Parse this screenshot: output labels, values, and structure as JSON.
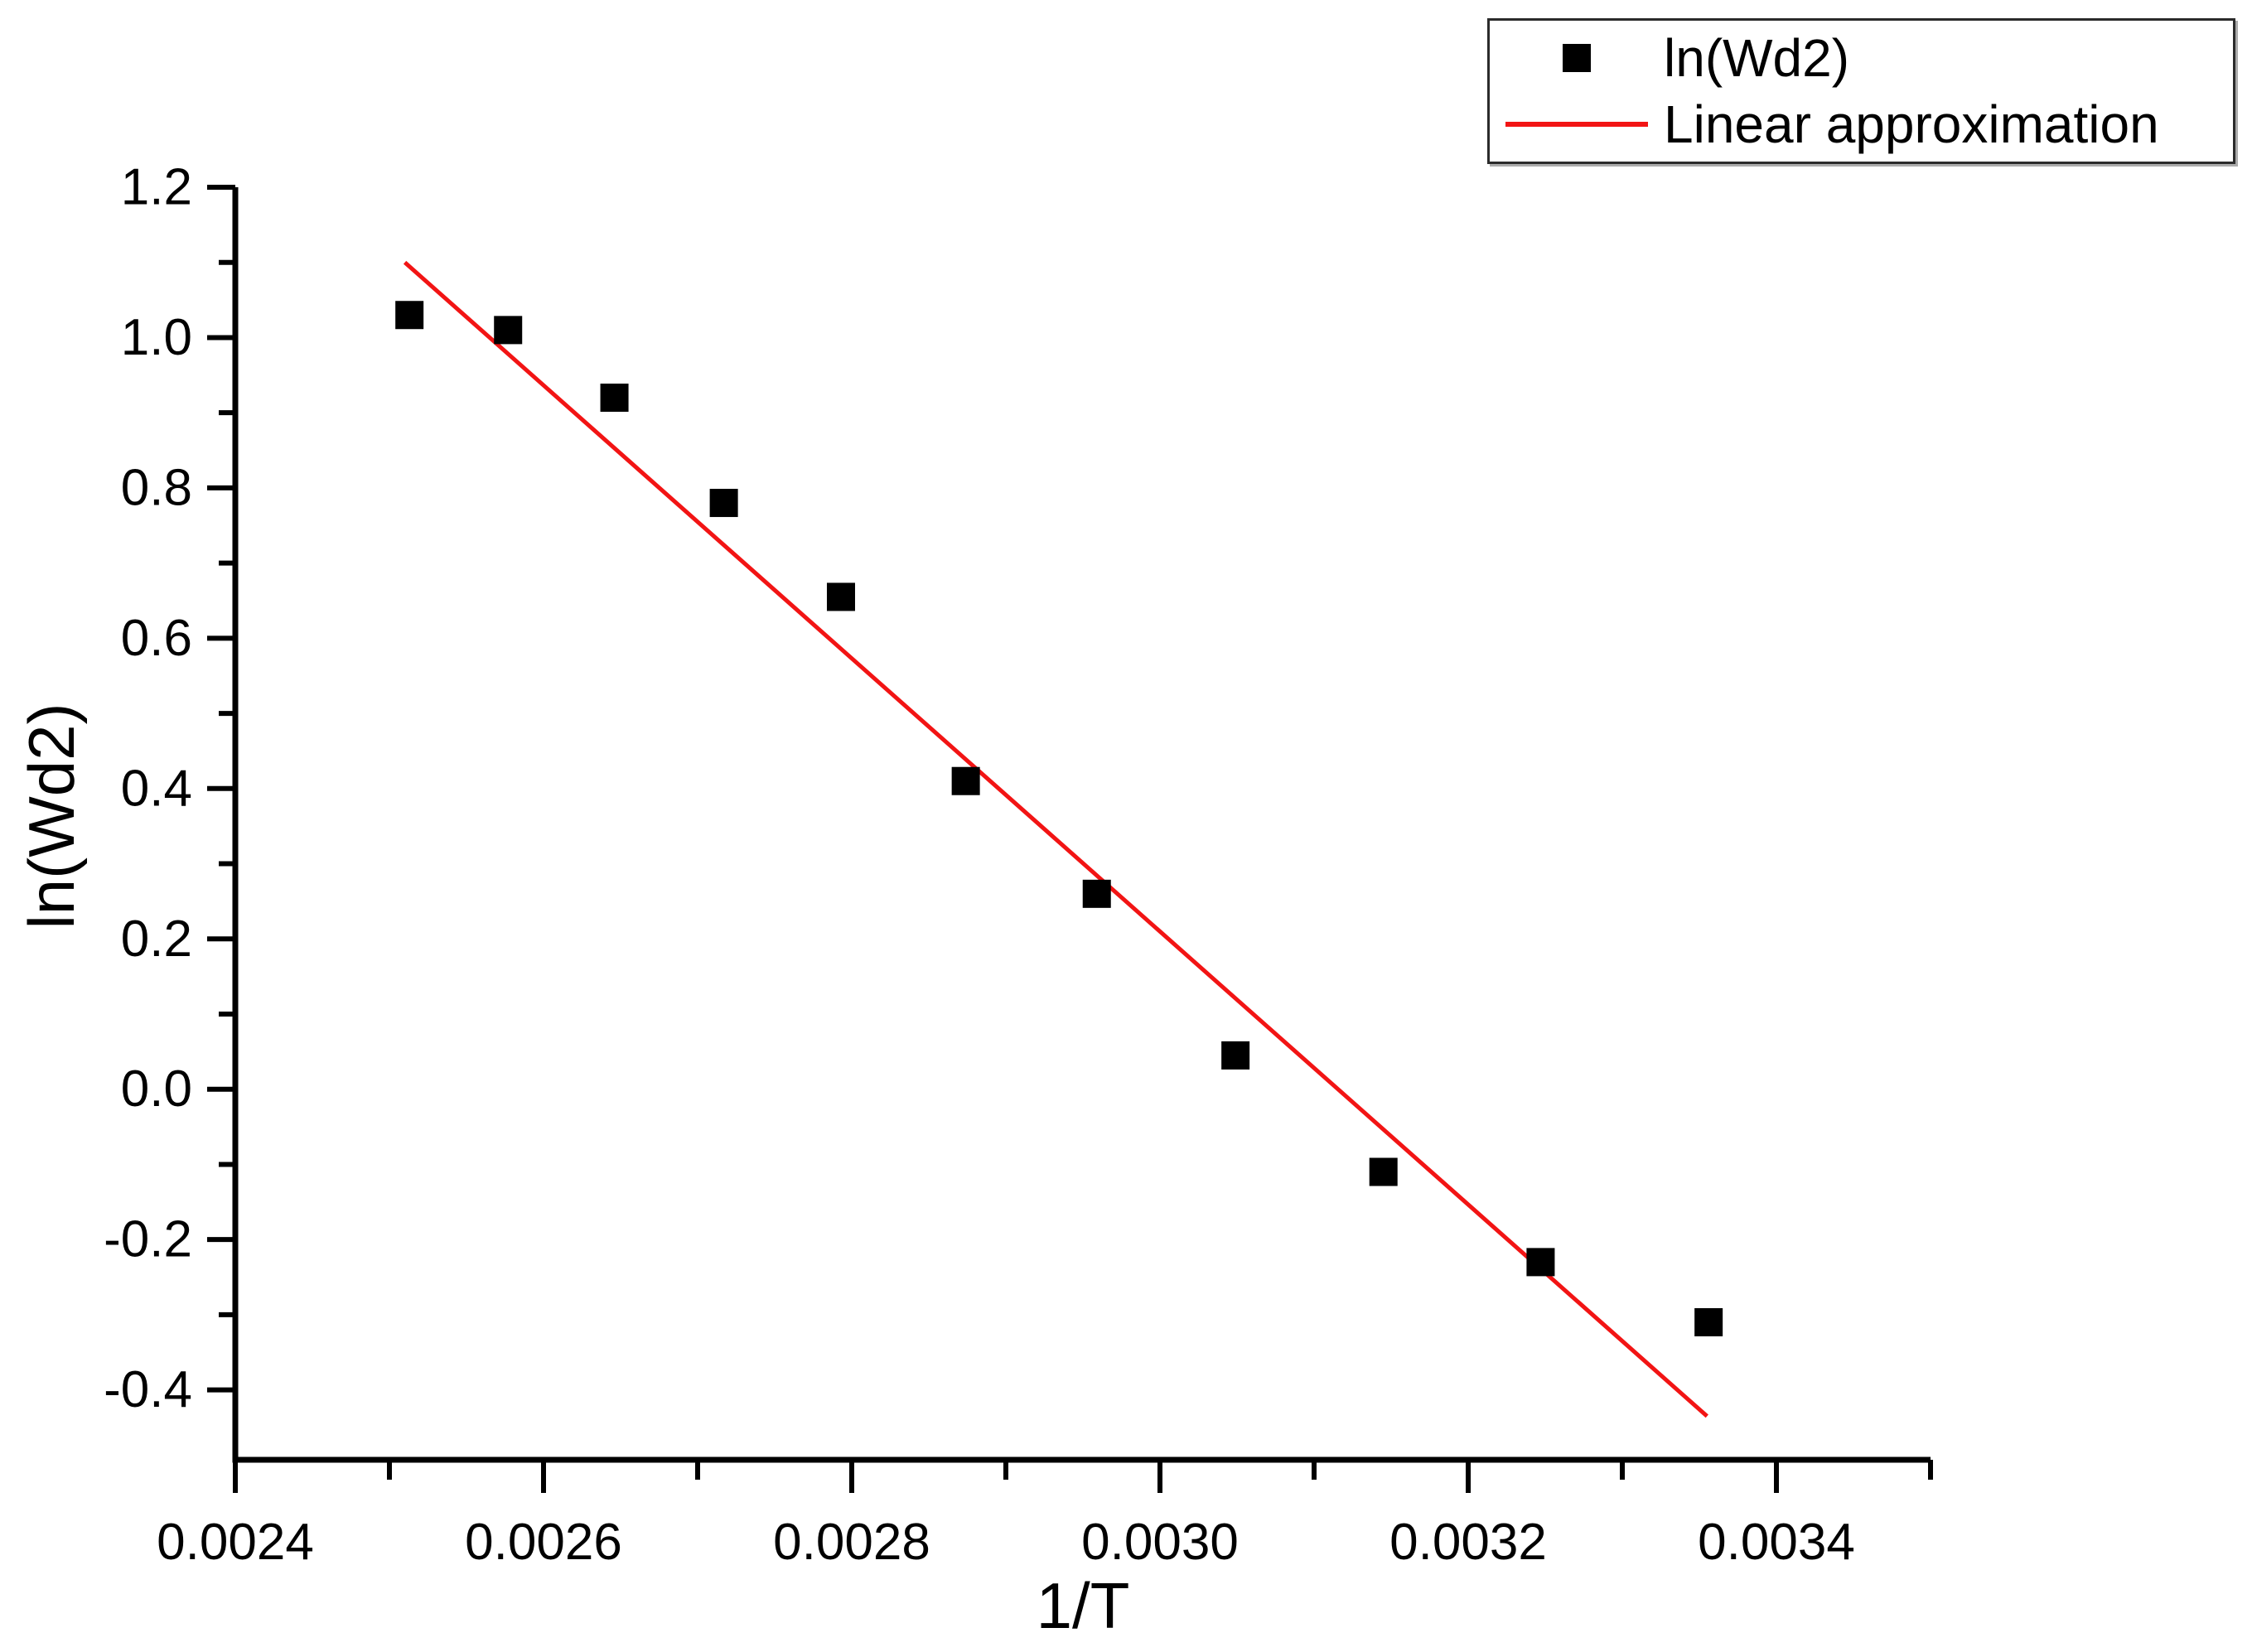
{
  "page": {
    "background": "#ffffff"
  },
  "legend": {
    "position": "top-right",
    "entries": [
      {
        "label": "ln(Wd2)",
        "marker": "square",
        "color": "#000000"
      },
      {
        "label": "Linear approximation",
        "marker": "line",
        "color": "#f21414"
      }
    ]
  },
  "chart_data": {
    "type": "scatter",
    "title": "",
    "xlabel": "1/T",
    "ylabel": "ln(Wd2)",
    "xlim": [
      0.0024,
      0.0035
    ],
    "ylim": [
      -0.493,
      1.2
    ],
    "grid": false,
    "legend_position": "top-right",
    "axis_color": "#000000",
    "x_ticks": {
      "values": [
        0.0024,
        0.0026,
        0.0028,
        0.003,
        0.0032,
        0.0034
      ],
      "labels": [
        "0.0024",
        "0.0026",
        "0.0028",
        "0.0030",
        "0.0032",
        "0.0034"
      ]
    },
    "x_minor_ticks": [
      0.0025,
      0.0027,
      0.0029,
      0.0031,
      0.0033,
      0.0035
    ],
    "y_ticks": {
      "values": [
        1.2,
        1.0,
        0.8,
        0.6,
        0.4,
        0.2,
        0.0,
        -0.2,
        -0.4
      ],
      "labels": [
        "1.2",
        "1.0",
        "0.8",
        "0.6",
        "0.4",
        "0.2",
        "0.0",
        "-0.2",
        "-0.4"
      ]
    },
    "y_minor_ticks": [
      1.1,
      0.9,
      0.7,
      0.5,
      0.3,
      0.1,
      -0.1,
      -0.3
    ],
    "series": [
      {
        "name": "ln(Wd2)",
        "type": "scatter",
        "marker": "square",
        "color": "#000000",
        "x": [
          0.002513,
          0.002577,
          0.002646,
          0.002717,
          0.002793,
          0.002874,
          0.002959,
          0.003049,
          0.003145,
          0.003247,
          0.003356
        ],
        "y": [
          1.03,
          1.01,
          0.92,
          0.78,
          0.655,
          0.41,
          0.26,
          0.045,
          -0.11,
          -0.23,
          -0.31
        ]
      },
      {
        "name": "Linear approximation",
        "type": "line",
        "color": "#f21414",
        "x": [
          0.00251,
          0.003355
        ],
        "y": [
          1.1,
          -0.435
        ]
      }
    ]
  }
}
